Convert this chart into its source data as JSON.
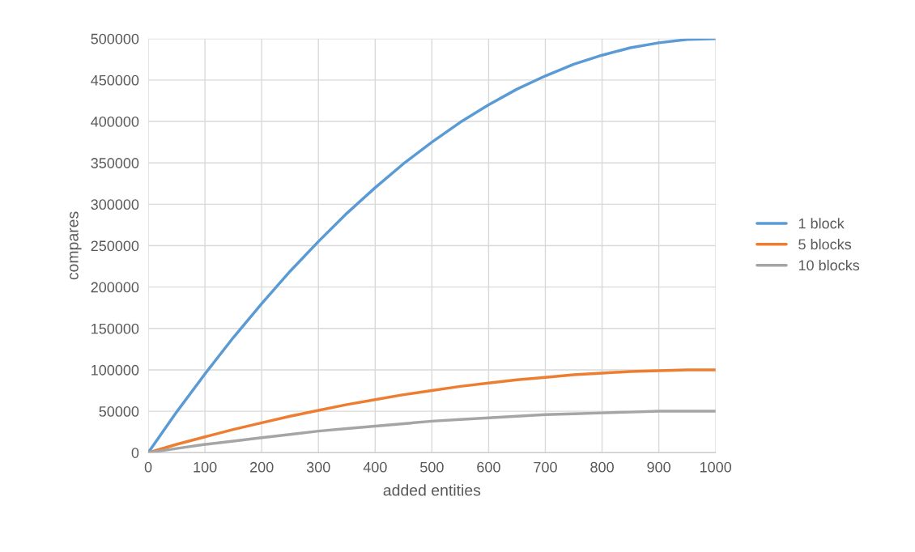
{
  "chart_data": {
    "type": "line",
    "xlabel": "added entities",
    "ylabel": "compares",
    "x": [
      0,
      50,
      100,
      150,
      200,
      250,
      300,
      350,
      400,
      450,
      500,
      550,
      600,
      650,
      700,
      750,
      800,
      850,
      900,
      950,
      1000
    ],
    "series": [
      {
        "name": "1 block",
        "color": "#5b9bd5",
        "values": [
          0,
          49000,
          95000,
          139000,
          180000,
          219000,
          255000,
          289000,
          320000,
          349000,
          375000,
          399000,
          420000,
          439000,
          455000,
          469000,
          480000,
          489000,
          495000,
          499000,
          500000
        ]
      },
      {
        "name": "5 blocks",
        "color": "#ed7d31",
        "values": [
          0,
          10000,
          19000,
          28000,
          36000,
          44000,
          51000,
          58000,
          64000,
          70000,
          75000,
          80000,
          84000,
          88000,
          91000,
          94000,
          96000,
          98000,
          99000,
          100000,
          100000
        ]
      },
      {
        "name": "10 blocks",
        "color": "#a5a5a5",
        "values": [
          0,
          5000,
          10000,
          14000,
          18000,
          22000,
          26000,
          29000,
          32000,
          35000,
          38000,
          40000,
          42000,
          44000,
          46000,
          47000,
          48000,
          49000,
          50000,
          50000,
          50000
        ]
      }
    ],
    "xlim": [
      0,
      1000
    ],
    "xticks": [
      0,
      100,
      200,
      300,
      400,
      500,
      600,
      700,
      800,
      900,
      1000
    ],
    "ylim": [
      0,
      500000
    ],
    "yticks": [
      0,
      50000,
      100000,
      150000,
      200000,
      250000,
      300000,
      350000,
      400000,
      450000,
      500000
    ],
    "grid": true,
    "legend": "right",
    "marker": "none",
    "line_style": "solid"
  }
}
